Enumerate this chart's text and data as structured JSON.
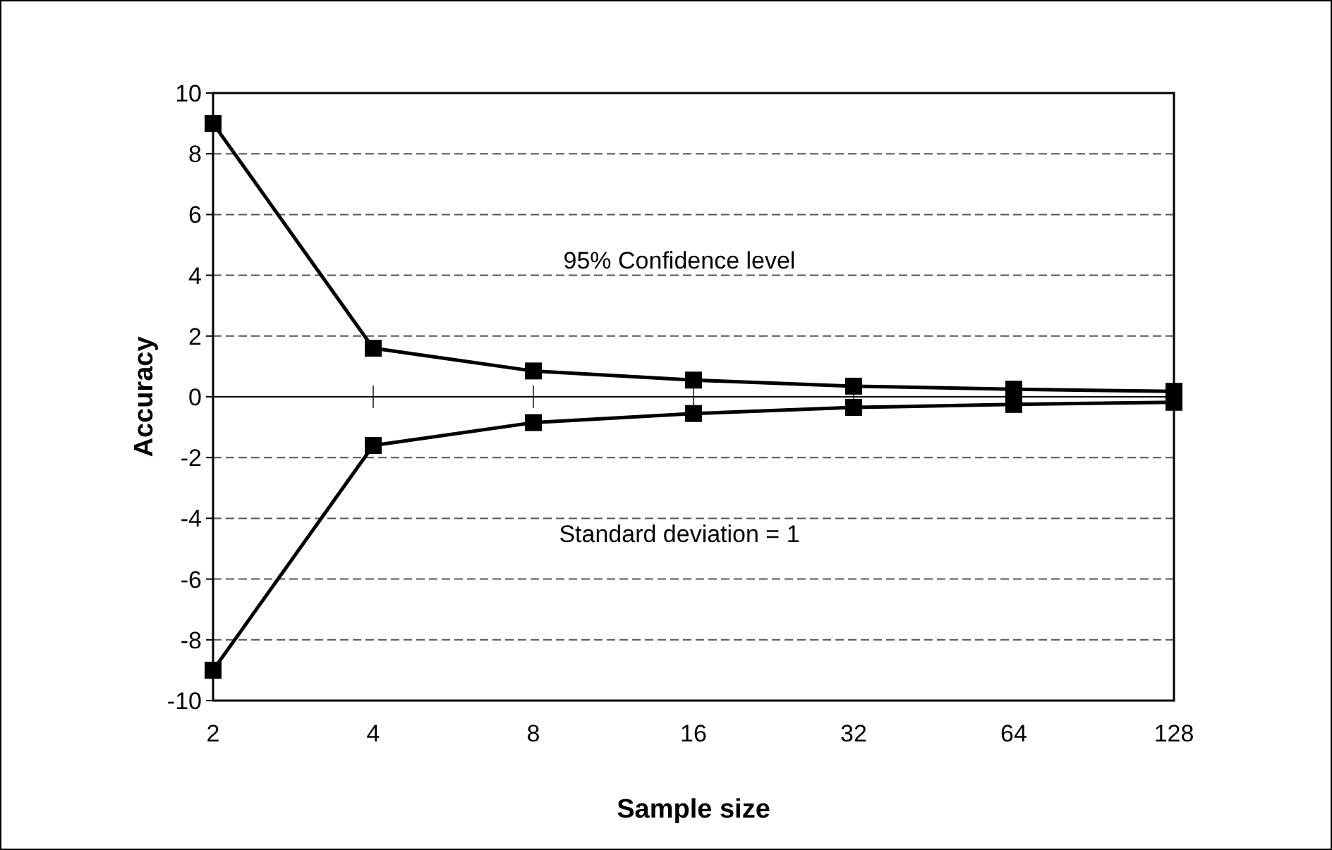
{
  "chart_data": {
    "type": "line",
    "xlabel": "Sample size",
    "ylabel": "Accuracy",
    "categories": [
      "2",
      "4",
      "8",
      "16",
      "32",
      "64",
      "128"
    ],
    "series": [
      {
        "color": "#000000",
        "values": [
          9,
          1.6,
          0.85,
          0.55,
          0.35,
          0.25,
          0.18
        ]
      },
      {
        "color": "#000000",
        "values": [
          -9,
          -1.6,
          -0.85,
          -0.55,
          -0.35,
          -0.25,
          -0.18
        ]
      }
    ],
    "ylim": [
      -10,
      10
    ],
    "yticks": [
      -10,
      -8,
      -6,
      -4,
      -2,
      0,
      2,
      4,
      6,
      8,
      10
    ],
    "grid": "y",
    "marker": "square",
    "line_style": "solid",
    "annotations": [
      "95% Confidence level",
      "Standard deviation = 1"
    ]
  }
}
